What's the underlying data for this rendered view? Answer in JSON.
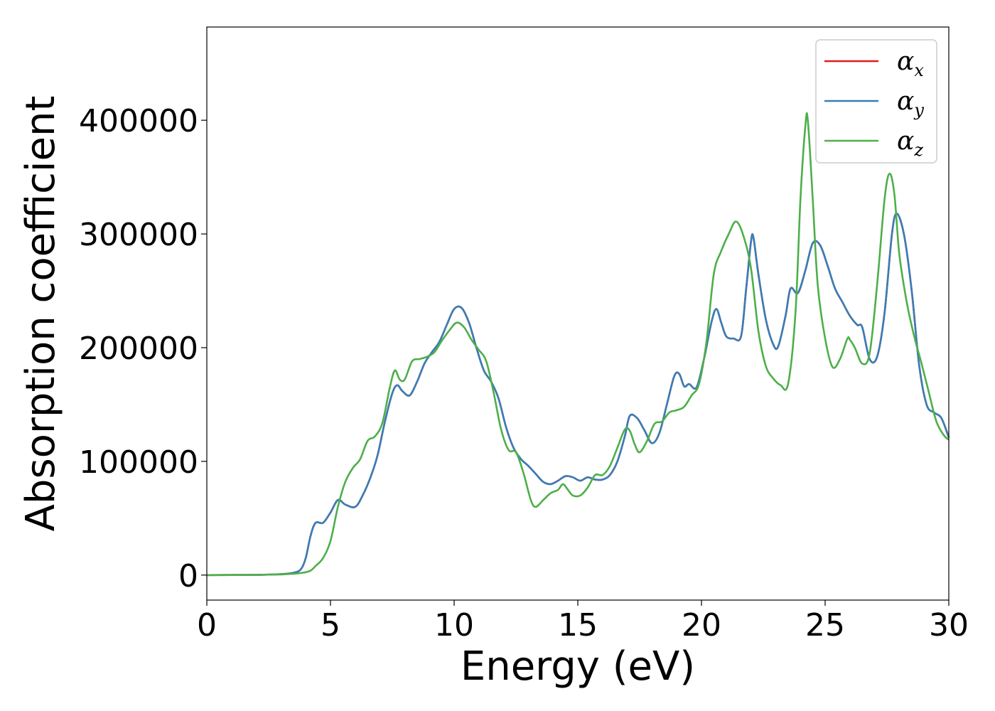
{
  "chart_data": {
    "type": "line",
    "title": "",
    "xlabel": "Energy (eV)",
    "ylabel": "Absorption coefficient",
    "xlim": [
      0,
      30
    ],
    "ylim": [
      -22000,
      482000
    ],
    "xticks": [
      0,
      5,
      10,
      15,
      20,
      25,
      30
    ],
    "yticks": [
      0,
      100000,
      200000,
      300000,
      400000
    ],
    "grid": false,
    "legend_position": "top-right",
    "series": [
      {
        "name": "α",
        "subscript": "x",
        "color": "#e41a1c",
        "x": [
          0,
          2,
          3,
          3.5,
          3.8,
          4.0,
          4.2,
          4.4,
          4.7,
          5.0,
          5.3,
          5.6,
          6.0,
          6.3,
          6.6,
          6.9,
          7.2,
          7.5,
          7.7,
          7.9,
          8.2,
          8.5,
          8.8,
          9.1,
          9.4,
          9.7,
          10.0,
          10.3,
          10.6,
          10.9,
          11.2,
          11.5,
          11.8,
          12.1,
          12.4,
          12.7,
          13.0,
          13.3,
          13.6,
          13.9,
          14.2,
          14.5,
          14.8,
          15.1,
          15.4,
          15.7,
          16.0,
          16.3,
          16.6,
          16.9,
          17.1,
          17.4,
          17.7,
          18.0,
          18.3,
          18.6,
          18.9,
          19.1,
          19.3,
          19.5,
          19.8,
          20.1,
          20.4,
          20.6,
          20.8,
          21.0,
          21.3,
          21.6,
          21.8,
          22.0,
          22.1,
          22.3,
          22.6,
          22.9,
          23.1,
          23.4,
          23.6,
          23.9,
          24.2,
          24.5,
          24.8,
          25.1,
          25.4,
          25.7,
          26.0,
          26.3,
          26.5,
          26.8,
          27.1,
          27.4,
          27.7,
          27.9,
          28.2,
          28.5,
          28.8,
          29.1,
          29.4,
          29.7,
          30.0
        ],
        "values": [
          0,
          200,
          800,
          2000,
          5000,
          15000,
          35000,
          46000,
          46000,
          55000,
          66000,
          62000,
          60000,
          70000,
          85000,
          105000,
          135000,
          160000,
          167000,
          162000,
          158000,
          170000,
          186000,
          196000,
          205000,
          220000,
          234000,
          235000,
          222000,
          200000,
          180000,
          170000,
          155000,
          130000,
          112000,
          102000,
          96000,
          89000,
          82000,
          80000,
          83000,
          87000,
          86000,
          83000,
          86000,
          84000,
          84000,
          88000,
          100000,
          122000,
          140000,
          138000,
          127000,
          116000,
          125000,
          150000,
          175000,
          177000,
          166000,
          168000,
          165000,
          190000,
          222000,
          234000,
          222000,
          210000,
          208000,
          210000,
          250000,
          293000,
          297000,
          265000,
          225000,
          203000,
          201000,
          228000,
          252000,
          248000,
          268000,
          292000,
          290000,
          272000,
          252000,
          240000,
          228000,
          220000,
          218000,
          190000,
          192000,
          230000,
          300000,
          318000,
          298000,
          250000,
          185000,
          150000,
          143000,
          138000,
          121000
        ]
      },
      {
        "name": "α",
        "subscript": "y",
        "color": "#377eb8",
        "x": [
          0,
          2,
          3,
          3.5,
          3.8,
          4.0,
          4.2,
          4.4,
          4.7,
          5.0,
          5.3,
          5.6,
          6.0,
          6.3,
          6.6,
          6.9,
          7.2,
          7.5,
          7.7,
          7.9,
          8.2,
          8.5,
          8.8,
          9.1,
          9.4,
          9.7,
          10.0,
          10.3,
          10.6,
          10.9,
          11.2,
          11.5,
          11.8,
          12.1,
          12.4,
          12.7,
          13.0,
          13.3,
          13.6,
          13.9,
          14.2,
          14.5,
          14.8,
          15.1,
          15.4,
          15.7,
          16.0,
          16.3,
          16.6,
          16.9,
          17.1,
          17.4,
          17.7,
          18.0,
          18.3,
          18.6,
          18.9,
          19.1,
          19.3,
          19.5,
          19.8,
          20.1,
          20.4,
          20.6,
          20.8,
          21.0,
          21.3,
          21.6,
          21.8,
          22.0,
          22.1,
          22.3,
          22.6,
          22.9,
          23.1,
          23.4,
          23.6,
          23.9,
          24.2,
          24.5,
          24.8,
          25.1,
          25.4,
          25.7,
          26.0,
          26.3,
          26.5,
          26.8,
          27.1,
          27.4,
          27.7,
          27.9,
          28.2,
          28.5,
          28.8,
          29.1,
          29.4,
          29.7,
          30.0
        ],
        "values": [
          0,
          200,
          800,
          2000,
          5000,
          15000,
          35000,
          46000,
          46000,
          55000,
          66000,
          62000,
          60000,
          70000,
          85000,
          105000,
          135000,
          160000,
          167000,
          162000,
          158000,
          170000,
          186000,
          196000,
          205000,
          220000,
          234000,
          235000,
          222000,
          200000,
          180000,
          170000,
          155000,
          130000,
          112000,
          102000,
          96000,
          89000,
          82000,
          80000,
          83000,
          87000,
          86000,
          83000,
          86000,
          84000,
          84000,
          88000,
          100000,
          122000,
          140000,
          138000,
          127000,
          116000,
          125000,
          150000,
          175000,
          177000,
          166000,
          168000,
          165000,
          190000,
          222000,
          234000,
          222000,
          210000,
          208000,
          210000,
          250000,
          293000,
          297000,
          265000,
          225000,
          203000,
          201000,
          228000,
          252000,
          248000,
          268000,
          292000,
          290000,
          272000,
          252000,
          240000,
          228000,
          220000,
          218000,
          190000,
          192000,
          230000,
          300000,
          318000,
          298000,
          250000,
          185000,
          150000,
          143000,
          138000,
          121000
        ]
      },
      {
        "name": "α",
        "subscript": "z",
        "color": "#4daf4a",
        "x": [
          0,
          2,
          3,
          3.5,
          3.8,
          4.0,
          4.2,
          4.4,
          4.7,
          5.0,
          5.3,
          5.6,
          5.9,
          6.2,
          6.5,
          6.8,
          7.1,
          7.4,
          7.6,
          7.8,
          8.0,
          8.3,
          8.6,
          8.9,
          9.2,
          9.5,
          9.8,
          10.1,
          10.4,
          10.7,
          11.0,
          11.3,
          11.6,
          11.9,
          12.2,
          12.5,
          12.8,
          13.1,
          13.3,
          13.6,
          13.9,
          14.2,
          14.4,
          14.6,
          14.8,
          15.1,
          15.4,
          15.7,
          16.0,
          16.3,
          16.6,
          16.9,
          17.1,
          17.3,
          17.5,
          17.8,
          18.1,
          18.4,
          18.7,
          19.0,
          19.3,
          19.6,
          19.9,
          20.2,
          20.5,
          20.8,
          21.1,
          21.4,
          21.7,
          22.0,
          22.3,
          22.6,
          22.9,
          23.2,
          23.5,
          23.8,
          24.0,
          24.2,
          24.3,
          24.5,
          24.7,
          25.0,
          25.3,
          25.6,
          25.9,
          26.0,
          26.2,
          26.5,
          26.8,
          27.1,
          27.4,
          27.6,
          27.8,
          28.0,
          28.3,
          28.6,
          28.9,
          29.2,
          29.5,
          29.8,
          30.0
        ],
        "values": [
          0,
          200,
          600,
          1200,
          1800,
          2500,
          4000,
          8000,
          15000,
          30000,
          60000,
          82000,
          94000,
          102000,
          118000,
          122000,
          134000,
          165000,
          180000,
          172000,
          172000,
          188000,
          190000,
          192000,
          196000,
          206000,
          215000,
          222000,
          218000,
          207000,
          198000,
          188000,
          160000,
          128000,
          110000,
          108000,
          90000,
          66000,
          60000,
          66000,
          72000,
          75000,
          80000,
          75000,
          70000,
          70000,
          77000,
          88000,
          88000,
          96000,
          112000,
          128000,
          127000,
          115000,
          108000,
          118000,
          133000,
          135000,
          143000,
          145000,
          148000,
          158000,
          168000,
          205000,
          265000,
          285000,
          300000,
          311000,
          298000,
          270000,
          215000,
          184000,
          173000,
          167000,
          168000,
          230000,
          330000,
          395000,
          400000,
          330000,
          255000,
          208000,
          183000,
          190000,
          208000,
          207000,
          200000,
          186000,
          195000,
          255000,
          330000,
          353000,
          335000,
          282000,
          240000,
          210000,
          186000,
          160000,
          135000,
          123000,
          119000
        ]
      }
    ]
  }
}
